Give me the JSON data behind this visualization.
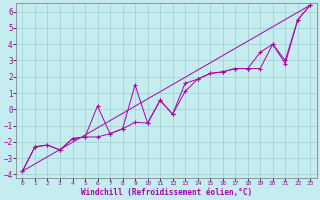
{
  "xlabel": "Windchill (Refroidissement éolien,°C)",
  "xlim": [
    -0.5,
    23.5
  ],
  "ylim": [
    -4.2,
    6.5
  ],
  "yticks": [
    -4,
    -3,
    -2,
    -1,
    0,
    1,
    2,
    3,
    4,
    5,
    6
  ],
  "xticks": [
    0,
    1,
    2,
    3,
    4,
    5,
    6,
    7,
    8,
    9,
    10,
    11,
    12,
    13,
    14,
    15,
    16,
    17,
    18,
    19,
    20,
    21,
    22,
    23
  ],
  "bg_color": "#c5ecee",
  "line_color": "#aa00aa",
  "grid_color": "#a0d4d8",
  "line1_x": [
    0,
    1,
    2,
    3,
    4,
    5,
    6,
    7,
    8,
    9,
    10,
    11,
    12,
    13,
    14,
    15,
    16,
    17,
    18,
    19,
    20,
    21,
    22,
    23
  ],
  "line1_y": [
    -3.8,
    -2.3,
    -2.2,
    -2.5,
    -1.8,
    -1.7,
    0.2,
    -1.5,
    -1.2,
    1.5,
    -0.85,
    0.55,
    -0.3,
    1.6,
    1.85,
    2.2,
    2.3,
    2.5,
    2.5,
    2.5,
    4.0,
    3.0,
    5.5,
    6.4
  ],
  "line2_x": [
    0,
    1,
    2,
    3,
    4,
    5,
    6,
    7,
    8,
    9,
    10,
    11,
    12,
    13,
    14,
    15,
    16,
    17,
    18,
    19,
    20,
    21,
    22,
    23
  ],
  "line2_y": [
    -3.8,
    -2.3,
    -2.2,
    -2.5,
    -1.8,
    -1.7,
    -1.7,
    -1.5,
    -1.2,
    -0.8,
    -0.85,
    0.55,
    -0.3,
    1.1,
    1.85,
    2.2,
    2.3,
    2.5,
    2.5,
    3.5,
    4.0,
    2.8,
    5.5,
    6.4
  ],
  "line3_x": [
    0,
    23
  ],
  "line3_y": [
    -3.8,
    6.4
  ]
}
